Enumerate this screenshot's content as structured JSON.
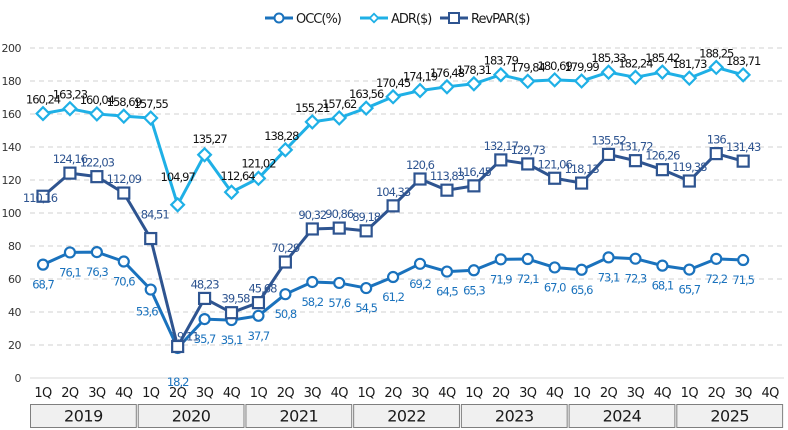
{
  "chart_data": {
    "type": "line",
    "title": "",
    "xlabel": "",
    "ylabel": "",
    "ylim": [
      0,
      200
    ],
    "yticks": [
      0,
      20,
      40,
      60,
      80,
      100,
      120,
      140,
      160,
      180,
      200
    ],
    "grid": true,
    "legend_position": "top-center",
    "quarters": [
      "1Q",
      "2Q",
      "3Q",
      "4Q",
      "1Q",
      "2Q",
      "3Q",
      "4Q",
      "1Q",
      "2Q",
      "3Q",
      "4Q",
      "1Q",
      "2Q",
      "3Q",
      "4Q",
      "1Q",
      "2Q",
      "3Q",
      "4Q",
      "1Q",
      "2Q",
      "3Q",
      "4Q",
      "1Q",
      "2Q",
      "3Q",
      "4Q"
    ],
    "years": [
      "2019",
      "2020",
      "2021",
      "2022",
      "2023",
      "2024",
      "2025"
    ],
    "series": [
      {
        "name": "OCC(%)",
        "color": "#1a72bd",
        "marker": "circle",
        "values": [
          68.7,
          76.1,
          76.3,
          70.6,
          53.6,
          18.2,
          35.7,
          35.1,
          37.7,
          50.8,
          58.2,
          57.6,
          54.5,
          61.2,
          69.2,
          64.5,
          65.3,
          71.9,
          72.1,
          67.0,
          65.6,
          73.1,
          72.3,
          68.1,
          65.7,
          72.2,
          71.5
        ],
        "labels": [
          "68,7",
          "76,1",
          "76,3",
          "70,6",
          "53,6",
          "18,2",
          "35,7",
          "35,1",
          "37,7",
          "50,8",
          "58,2",
          "57,6",
          "54,5",
          "61,2",
          "69,2",
          "64,5",
          "65,3",
          "71,9",
          "72,1",
          "67,0",
          "65,6",
          "73,1",
          "72,3",
          "68,1",
          "65,7",
          "72,2",
          "71,5"
        ]
      },
      {
        "name": "ADR($)",
        "color": "#1fb0e6",
        "marker": "diamond",
        "values": [
          160.24,
          163.23,
          160.04,
          158.69,
          157.55,
          104.97,
          135.27,
          112.64,
          121.02,
          138.28,
          155.21,
          157.62,
          163.56,
          170.45,
          174.19,
          176.48,
          178.31,
          183.79,
          179.84,
          180.69,
          179.99,
          185.33,
          182.24,
          185.42,
          181.73,
          188.25,
          183.71
        ],
        "labels": [
          "160,24",
          "163,23",
          "160,04",
          "158,69",
          "157,55",
          "104,97",
          "135,27",
          "112,64",
          "121,02",
          "138,28",
          "155,21",
          "157,62",
          "163,56",
          "170,45",
          "174,19",
          "176,48",
          "178,31",
          "183,79",
          "179,84",
          "180,69",
          "179,99",
          "185,33",
          "182,24",
          "185,42",
          "181,73",
          "188,25",
          "183,71"
        ]
      },
      {
        "name": "RevPAR($)",
        "color": "#2e5490",
        "marker": "square",
        "values": [
          110.16,
          124.16,
          122.03,
          112.09,
          84.51,
          19.11,
          48.23,
          39.58,
          45.68,
          70.29,
          90.32,
          90.86,
          89.18,
          104.33,
          120.6,
          113.83,
          116.45,
          132.17,
          129.73,
          121.06,
          118.13,
          135.52,
          131.72,
          126.26,
          119.38,
          136,
          131.43
        ],
        "labels": [
          "110,16",
          "124,16",
          "122,03",
          "112,09",
          "84,51",
          "19,11",
          "48,23",
          "39,58",
          "45,68",
          "70,29",
          "90,32",
          "90,86",
          "89,18",
          "104,33",
          "120,6",
          "113,83",
          "116,45",
          "132,17",
          "129,73",
          "121,06",
          "118,13",
          "135,52",
          "131,72",
          "126,26",
          "119,38",
          "136",
          "131,43"
        ]
      }
    ]
  }
}
